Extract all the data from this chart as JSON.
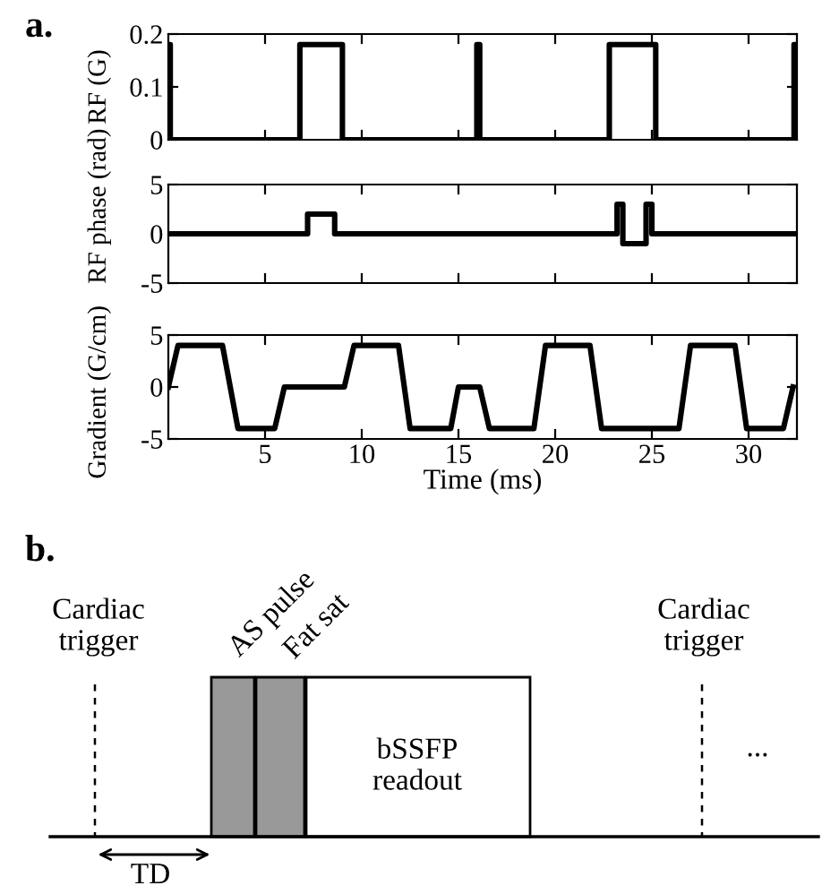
{
  "chart_data": [
    {
      "type": "line",
      "title": "a.",
      "ylabel": "RF (G)",
      "xlim": [
        0,
        32.5
      ],
      "xticks": [
        5,
        10,
        15,
        20,
        25,
        30
      ],
      "ylim": [
        0,
        0.2
      ],
      "yticks": [
        0,
        0.1,
        0.2
      ],
      "tick_labels": "y",
      "series": [
        {
          "color": "#000000",
          "x": [
            0,
            0,
            0.1,
            0.1,
            6.8,
            6.8,
            9.0,
            9.0,
            15.95,
            15.95,
            16.1,
            16.1,
            22.8,
            22.8,
            25.2,
            25.2,
            32.35,
            32.35,
            32.5
          ],
          "values": [
            0,
            0.18,
            0.18,
            0,
            0,
            0.18,
            0.18,
            0,
            0,
            0.18,
            0.18,
            0,
            0,
            0.18,
            0.18,
            0,
            0,
            0.18,
            0.18
          ]
        }
      ]
    },
    {
      "type": "line",
      "ylabel": "RF phase (rad)",
      "xlim": [
        0,
        32.5
      ],
      "xticks": [
        5,
        10,
        15,
        20,
        25,
        30
      ],
      "ylim": [
        -5,
        5
      ],
      "yticks": [
        -5,
        0,
        5
      ],
      "tick_labels": "y",
      "series": [
        {
          "color": "#000000",
          "x": [
            0,
            7.2,
            7.2,
            8.6,
            8.6,
            23.2,
            23.2,
            23.5,
            23.5,
            24.7,
            24.7,
            25.0,
            25.0,
            32.5
          ],
          "values": [
            0,
            0,
            2,
            2,
            0,
            0,
            3,
            3,
            -1,
            -1,
            3,
            3,
            0,
            0
          ]
        }
      ]
    },
    {
      "type": "line",
      "xlabel": "Time (ms)",
      "ylabel": "Gradient (G/cm)",
      "xlim": [
        0,
        32.5
      ],
      "xticks": [
        5,
        10,
        15,
        20,
        25,
        30
      ],
      "ylim": [
        -5,
        5
      ],
      "yticks": [
        -5,
        0,
        5
      ],
      "series": [
        {
          "color": "#000000",
          "x": [
            0,
            0.5,
            2.8,
            3.6,
            5.5,
            6.0,
            9.1,
            9.6,
            11.9,
            12.5,
            14.6,
            15.0,
            16.1,
            16.6,
            18.9,
            19.5,
            21.8,
            22.4,
            26.4,
            27.0,
            29.3,
            29.9,
            31.8,
            32.3
          ],
          "values": [
            0,
            4,
            4,
            -4,
            -4,
            0,
            0,
            4,
            4,
            -4,
            -4,
            0,
            0,
            -4,
            -4,
            4,
            4,
            -4,
            -4,
            4,
            4,
            -4,
            -4,
            0
          ]
        }
      ]
    },
    {
      "type": "other",
      "title": "b.",
      "annotations": [
        "Cardiac\ntrigger",
        "AS pulse",
        "Fat sat",
        "bSSFP\nreadout",
        "Cardiac\ntrigger",
        "...",
        "TD"
      ]
    }
  ]
}
